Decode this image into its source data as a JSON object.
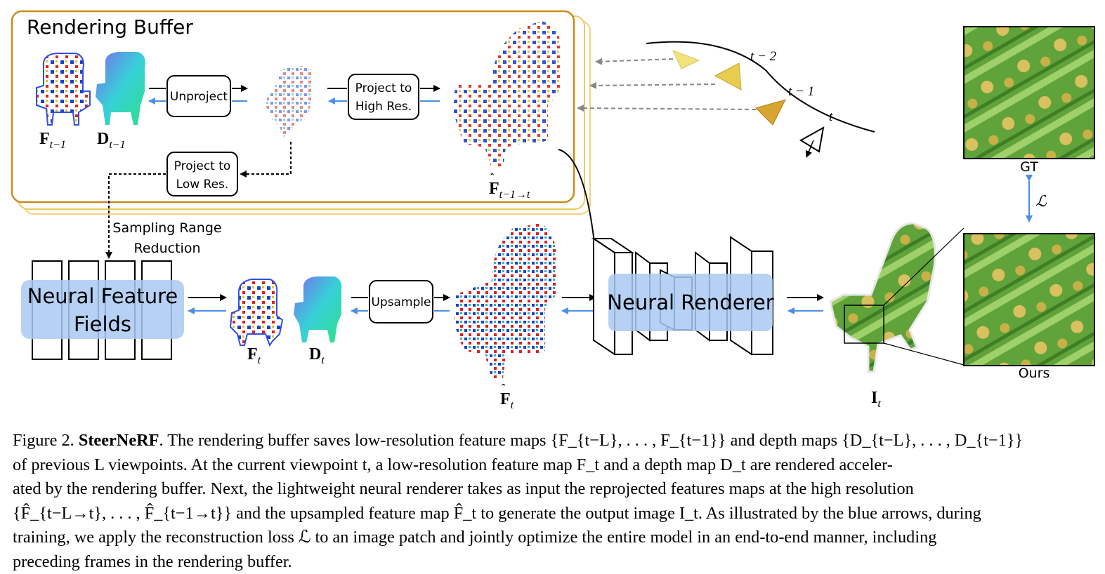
{
  "figure": {
    "rendering_buffer_title": "Rendering Buffer",
    "unproject_label": "Unproject",
    "project_high_label_1": "Project to",
    "project_high_label_2": "High Res.",
    "project_low_label_1": "Project to",
    "project_low_label_2": "Low Res.",
    "sampling_label_1": "Sampling Range",
    "sampling_label_2": "Reduction",
    "nff_label_1": "Neural Feature",
    "nff_label_2": "Fields",
    "upsample_label": "Upsample",
    "neural_renderer_label": "Neural Renderer",
    "gt_label": "GT",
    "ours_label": "Ours",
    "loss_symbol": "ℒ",
    "cam_t2": "t − 2",
    "cam_t1": "t − 1",
    "cam_t": "t",
    "sym_F": "F",
    "sym_D": "D",
    "sub_tm1": "t−1",
    "sub_t": "t",
    "sub_tm1_to_t": "t−1→t",
    "sym_I": "I"
  },
  "caption": {
    "lead": "Figure 2.",
    "title": "SteerNeRF",
    "line1": ". The rendering buffer saves low-resolution feature maps {F_{t−L}, . . . , F_{t−1}} and depth maps {D_{t−L}, . . . , D_{t−1}}",
    "line2": "of previous L viewpoints. At the current viewpoint t, a low-resolution feature map F_t and a depth map D_t are rendered acceler-",
    "line3": "ated by the rendering buffer. Next, the lightweight neural renderer takes as input the reprojected features maps at the high resolution",
    "line4": "{F̂_{t−L→t}, . . . , F̂_{t−1→t}} and the upsampled feature map F̂_t to generate the output image I_t. As illustrated by the blue arrows, during",
    "line5": "training, we apply the reconstruction loss ℒ to an image patch and jointly optimize the entire model in an end-to-end manner, including",
    "line6": "preceding frames in the rendering buffer."
  },
  "colors": {
    "buffer_border": "#c98a1e",
    "buffer_back": "#f3d27a",
    "forward_arrow": "#000000",
    "backward_arrow": "#4a8ee6",
    "highlight_box": "#a9c9f2",
    "camera_dark": "#c9a42a",
    "camera_light": "#f2e27a",
    "green_patch": "#6fae3a"
  }
}
